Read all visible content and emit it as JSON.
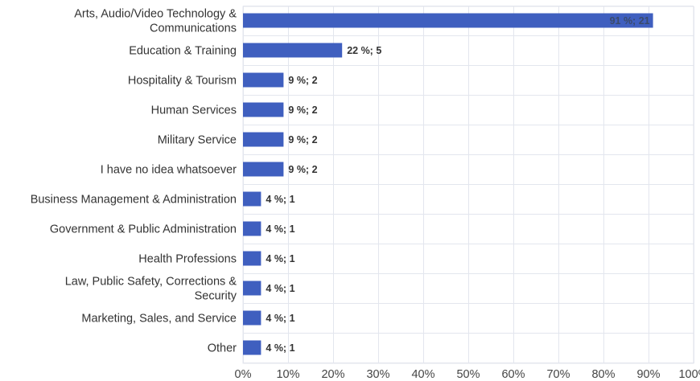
{
  "chart_data": {
    "type": "bar",
    "orientation": "horizontal",
    "title": "",
    "xlabel": "",
    "ylabel": "",
    "xlim": [
      0,
      100
    ],
    "x_ticks": [
      "0%",
      "10%",
      "20%",
      "30%",
      "40%",
      "50%",
      "60%",
      "70%",
      "80%",
      "90%",
      "100%"
    ],
    "grid": true,
    "colors": {
      "bar": "#3f5fbf",
      "grid": "#e3e6ee"
    },
    "bars": [
      {
        "category": [
          "Arts, Audio/Video Technology &",
          "Communications"
        ],
        "percent": 91,
        "count": 21,
        "label": "91 %; 21"
      },
      {
        "category": [
          "Education & Training"
        ],
        "percent": 22,
        "count": 5,
        "label": "22 %; 5"
      },
      {
        "category": [
          "Hospitality & Tourism"
        ],
        "percent": 9,
        "count": 2,
        "label": "9 %; 2"
      },
      {
        "category": [
          "Human Services"
        ],
        "percent": 9,
        "count": 2,
        "label": "9 %; 2"
      },
      {
        "category": [
          "Military Service"
        ],
        "percent": 9,
        "count": 2,
        "label": "9 %; 2"
      },
      {
        "category": [
          "I have no idea whatsoever"
        ],
        "percent": 9,
        "count": 2,
        "label": "9 %; 2"
      },
      {
        "category": [
          "Business Management & Administration"
        ],
        "percent": 4,
        "count": 1,
        "label": "4 %; 1"
      },
      {
        "category": [
          "Government & Public Administration"
        ],
        "percent": 4,
        "count": 1,
        "label": "4 %; 1"
      },
      {
        "category": [
          "Health Professions"
        ],
        "percent": 4,
        "count": 1,
        "label": "4 %; 1"
      },
      {
        "category": [
          "Law, Public Safety, Corrections &",
          "Security"
        ],
        "percent": 4,
        "count": 1,
        "label": "4 %; 1"
      },
      {
        "category": [
          "Marketing, Sales, and Service"
        ],
        "percent": 4,
        "count": 1,
        "label": "4 %; 1"
      },
      {
        "category": [
          "Other"
        ],
        "percent": 4,
        "count": 1,
        "label": "4 %; 1"
      }
    ]
  }
}
